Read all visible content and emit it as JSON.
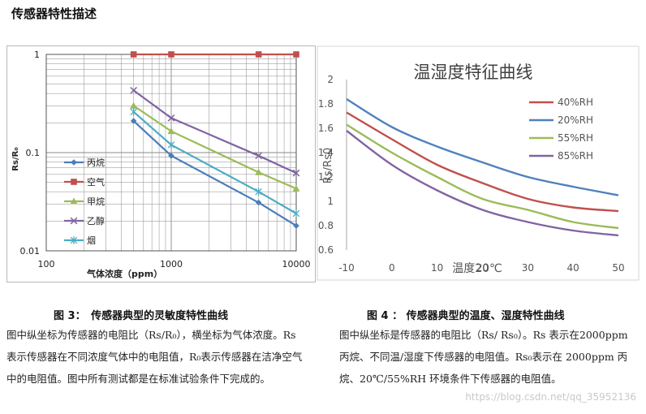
{
  "page_title": "传感器特性描述",
  "chart_data": [
    {
      "type": "line",
      "log_x": true,
      "log_y": true,
      "xlabel": "气体浓度（ppm）",
      "ylabel": "Rs/R₀",
      "xlim": [
        100,
        10000
      ],
      "ylim": [
        0.01,
        1
      ],
      "x_ticks": [
        "100",
        "1000",
        "10000"
      ],
      "y_ticks": [
        "1",
        "0.1",
        "0.01"
      ],
      "grid": true,
      "legend_position": "left",
      "series": [
        {
          "name": "丙烷",
          "marker": "diamond",
          "color": "#4a7ebb",
          "x": [
            500,
            1000,
            5000,
            10000
          ],
          "y": [
            0.21,
            0.093,
            0.031,
            0.018
          ]
        },
        {
          "name": "空气",
          "marker": "square",
          "color": "#c0504d",
          "x": [
            500,
            1000,
            5000,
            10000
          ],
          "y": [
            1,
            1,
            1,
            1
          ]
        },
        {
          "name": "甲烷",
          "marker": "triangle",
          "color": "#9bbb59",
          "x": [
            500,
            1000,
            5000,
            10000
          ],
          "y": [
            0.3,
            0.165,
            0.063,
            0.043
          ]
        },
        {
          "name": "乙醇",
          "marker": "x",
          "color": "#8064a2",
          "x": [
            500,
            1000,
            5000,
            10000
          ],
          "y": [
            0.43,
            0.225,
            0.093,
            0.062
          ]
        },
        {
          "name": "烟",
          "marker": "star",
          "color": "#4bacc6",
          "x": [
            500,
            1000,
            5000,
            10000
          ],
          "y": [
            0.26,
            0.12,
            0.04,
            0.024
          ]
        }
      ]
    },
    {
      "type": "line",
      "title": "温湿度特征曲线",
      "xlabel": "温度20℃",
      "ylabel": "Rs/Rs0",
      "xlim": [
        -10,
        50
      ],
      "ylim": [
        0.6,
        2
      ],
      "x_ticks": [
        "-10",
        "0",
        "10",
        "20",
        "30",
        "40",
        "50"
      ],
      "y_ticks": [
        "2",
        "1.8",
        "1.6",
        "1.4",
        "1.2",
        "1",
        "0.8",
        "0.6"
      ],
      "grid": false,
      "legend_position": "right",
      "series": [
        {
          "name": "40%RH",
          "color": "#c0504d",
          "x": [
            -10,
            0,
            10,
            20,
            30,
            40,
            50
          ],
          "y": [
            1.73,
            1.51,
            1.3,
            1.15,
            1.02,
            0.95,
            0.92
          ]
        },
        {
          "name": "20%RH",
          "color": "#4f81bd",
          "x": [
            -10,
            0,
            10,
            20,
            30,
            40,
            50
          ],
          "y": [
            1.84,
            1.61,
            1.45,
            1.32,
            1.2,
            1.12,
            1.05
          ]
        },
        {
          "name": "55%RH",
          "color": "#9bbb59",
          "x": [
            -10,
            0,
            10,
            20,
            30,
            40,
            50
          ],
          "y": [
            1.63,
            1.4,
            1.2,
            1.02,
            0.93,
            0.83,
            0.78
          ]
        },
        {
          "name": "85%RH",
          "color": "#8064a2",
          "x": [
            -10,
            0,
            10,
            20,
            30,
            40,
            50
          ],
          "y": [
            1.58,
            1.3,
            1.09,
            0.93,
            0.83,
            0.76,
            0.72
          ]
        }
      ]
    }
  ],
  "left_caption": "图 3：　传感器典型的灵敏度特性曲线",
  "right_caption": "图 4 ：  传感器典型的温度、湿度特性曲线",
  "left_text": "图中纵坐标为传感器的电阻比（Rs/R₀），横坐标为气体浓度。Rs 表示传感器在不同浓度气体中的电阻值，R₀表示传感器在洁净空气中的电阻值。图中所有测试都是在标准试验条件下完成的。",
  "right_text": "图中纵坐标是传感器的电阻比（Rs/ Rs₀）。Rs 表示在2000ppm 丙烷、不同温/湿度下传感器的电阻值。Rs₀表示在 2000ppm 丙烷、20℃/55%RH 环境条件下传感器的电阻值。",
  "watermark": "https://blog.csdn.net/qq_35952136"
}
